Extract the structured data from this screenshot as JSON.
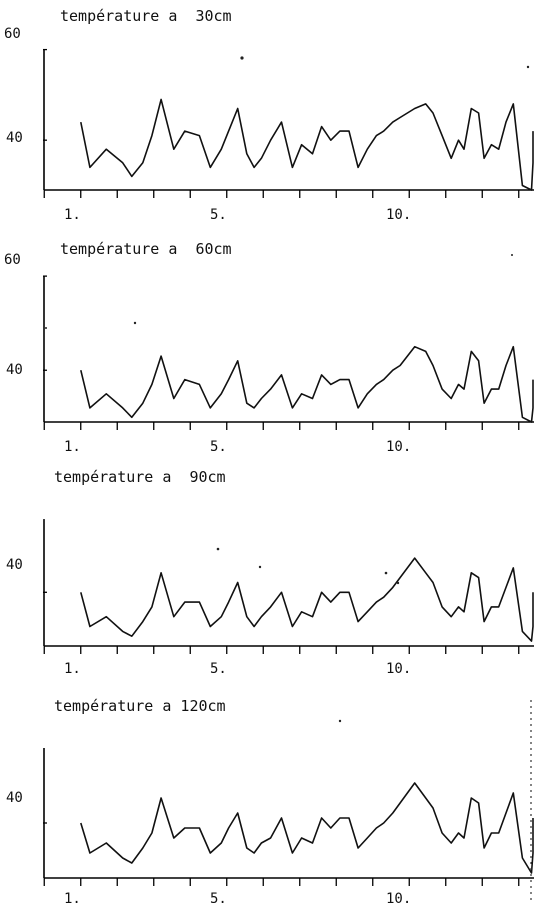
{
  "chart_data": [
    {
      "type": "line",
      "title": "température a  30cm",
      "x_tick_labels": [
        "1.",
        "5.",
        "10."
      ],
      "x_tick_values": [
        1,
        5,
        10
      ],
      "xlim": [
        0,
        13.4
      ],
      "y_tick_labels": [
        "60",
        "40"
      ],
      "y_tick_values": [
        60,
        40
      ],
      "ylim": [
        29,
        63
      ],
      "y_axis_value": 60,
      "baseline_value": 29,
      "grid": false,
      "legend": "none",
      "series": [
        {
          "x": [
            1.0,
            1.25,
            1.7,
            2.15,
            2.4,
            2.7,
            2.95,
            3.2,
            3.55,
            3.85,
            4.25,
            4.55,
            4.85,
            5.05,
            5.3,
            5.55,
            5.75,
            5.95,
            6.2,
            6.5,
            6.8,
            7.05,
            7.35,
            7.6,
            7.85,
            8.1,
            8.35,
            8.6,
            8.85,
            9.1,
            9.3,
            9.55,
            9.75,
            9.95,
            10.15,
            10.45,
            10.65,
            10.9,
            11.15,
            11.35,
            11.5,
            11.7,
            11.9,
            12.05,
            12.25,
            12.45,
            12.65,
            12.85,
            13.1,
            13.35,
            13.55,
            13.8
          ],
          "y": [
            44,
            34,
            38,
            35,
            32,
            35,
            41,
            49,
            38,
            42,
            41,
            34,
            38,
            42,
            47,
            37,
            34,
            36,
            40,
            44,
            34,
            39,
            37,
            43,
            40,
            42,
            42,
            34,
            38,
            41,
            42,
            44,
            45,
            46,
            47,
            48,
            46,
            41,
            36,
            40,
            38,
            47,
            46,
            36,
            39,
            38,
            44,
            48,
            30,
            29,
            35,
            42
          ]
        }
      ]
    },
    {
      "type": "line",
      "title": "température a  60cm",
      "x_tick_labels": [
        "1.",
        "5.",
        "10."
      ],
      "x_tick_values": [
        1,
        5,
        10
      ],
      "xlim": [
        0,
        13.4
      ],
      "y_tick_labels": [
        "60",
        "40"
      ],
      "y_tick_values": [
        60,
        40
      ],
      "ylim": [
        29,
        63
      ],
      "y_axis_value": 60,
      "baseline_value": 29,
      "grid": false,
      "legend": "none",
      "series": [
        {
          "x": [
            1.0,
            1.25,
            1.7,
            2.15,
            2.4,
            2.7,
            2.95,
            3.2,
            3.55,
            3.85,
            4.25,
            4.55,
            4.85,
            5.05,
            5.3,
            5.55,
            5.75,
            5.95,
            6.2,
            6.5,
            6.8,
            7.05,
            7.35,
            7.6,
            7.85,
            8.1,
            8.35,
            8.6,
            8.85,
            9.1,
            9.3,
            9.55,
            9.75,
            9.95,
            10.15,
            10.45,
            10.65,
            10.9,
            11.15,
            11.35,
            11.5,
            11.7,
            11.9,
            12.05,
            12.25,
            12.45,
            12.65,
            12.85,
            13.1,
            13.35,
            13.55,
            13.8
          ],
          "y": [
            40,
            32,
            35,
            32,
            30,
            33,
            37,
            43,
            34,
            38,
            37,
            32,
            35,
            38,
            42,
            33,
            32,
            34,
            36,
            39,
            32,
            35,
            34,
            39,
            37,
            38,
            38,
            32,
            35,
            37,
            38,
            40,
            41,
            43,
            45,
            44,
            41,
            36,
            34,
            37,
            36,
            44,
            42,
            33,
            36,
            36,
            41,
            45,
            30,
            29,
            32,
            38
          ]
        }
      ]
    },
    {
      "type": "line",
      "title": "température a  90cm",
      "x_tick_labels": [
        "1.",
        "5.",
        "10."
      ],
      "x_tick_values": [
        1,
        5,
        10
      ],
      "xlim": [
        0,
        13.4
      ],
      "y_tick_labels": [
        "40"
      ],
      "y_tick_values": [
        40
      ],
      "ylim": [
        29,
        63
      ],
      "y_axis_value": 55,
      "baseline_value": 29,
      "grid": false,
      "legend": "none",
      "series": [
        {
          "x": [
            1.0,
            1.25,
            1.7,
            2.15,
            2.4,
            2.7,
            2.95,
            3.2,
            3.55,
            3.85,
            4.25,
            4.55,
            4.85,
            5.05,
            5.3,
            5.55,
            5.75,
            5.95,
            6.2,
            6.5,
            6.8,
            7.05,
            7.35,
            7.6,
            7.85,
            8.1,
            8.35,
            8.6,
            8.85,
            9.1,
            9.3,
            9.55,
            9.75,
            9.95,
            10.15,
            10.45,
            10.65,
            10.9,
            11.15,
            11.35,
            11.5,
            11.7,
            11.9,
            12.05,
            12.25,
            12.45,
            12.65,
            12.85,
            13.1,
            13.35,
            13.55,
            13.8
          ],
          "y": [
            40,
            33,
            35,
            32,
            31,
            34,
            37,
            44,
            35,
            38,
            38,
            33,
            35,
            38,
            42,
            35,
            33,
            35,
            37,
            40,
            33,
            36,
            35,
            40,
            38,
            40,
            40,
            34,
            36,
            38,
            39,
            41,
            43,
            45,
            47,
            44,
            42,
            37,
            35,
            37,
            36,
            44,
            43,
            34,
            37,
            37,
            41,
            45,
            32,
            30,
            33,
            40
          ]
        }
      ]
    },
    {
      "type": "line",
      "title": "température a 120cm",
      "x_tick_labels": [
        "1.",
        "5.",
        "10."
      ],
      "x_tick_values": [
        1,
        5,
        10
      ],
      "xlim": [
        0,
        13.4
      ],
      "y_tick_labels": [
        "40"
      ],
      "y_tick_values": [
        40
      ],
      "ylim": [
        29,
        63
      ],
      "y_axis_value": 55,
      "baseline_value": 29,
      "grid": false,
      "legend": "none",
      "series": [
        {
          "x": [
            1.0,
            1.25,
            1.7,
            2.15,
            2.4,
            2.7,
            2.95,
            3.2,
            3.55,
            3.85,
            4.25,
            4.55,
            4.85,
            5.05,
            5.3,
            5.55,
            5.75,
            5.95,
            6.2,
            6.5,
            6.8,
            7.05,
            7.35,
            7.6,
            7.85,
            8.1,
            8.35,
            8.6,
            8.85,
            9.1,
            9.3,
            9.55,
            9.75,
            9.95,
            10.15,
            10.45,
            10.65,
            10.9,
            11.15,
            11.35,
            11.5,
            11.7,
            11.9,
            12.05,
            12.25,
            12.45,
            12.65,
            12.85,
            13.1,
            13.35,
            13.55,
            13.8
          ],
          "y": [
            40,
            34,
            36,
            33,
            32,
            35,
            38,
            45,
            37,
            39,
            39,
            34,
            36,
            39,
            42,
            35,
            34,
            36,
            37,
            41,
            34,
            37,
            36,
            41,
            39,
            41,
            41,
            35,
            37,
            39,
            40,
            42,
            44,
            46,
            48,
            45,
            43,
            38,
            36,
            38,
            37,
            45,
            44,
            35,
            38,
            38,
            42,
            46,
            33,
            30,
            34,
            41
          ]
        }
      ]
    }
  ]
}
